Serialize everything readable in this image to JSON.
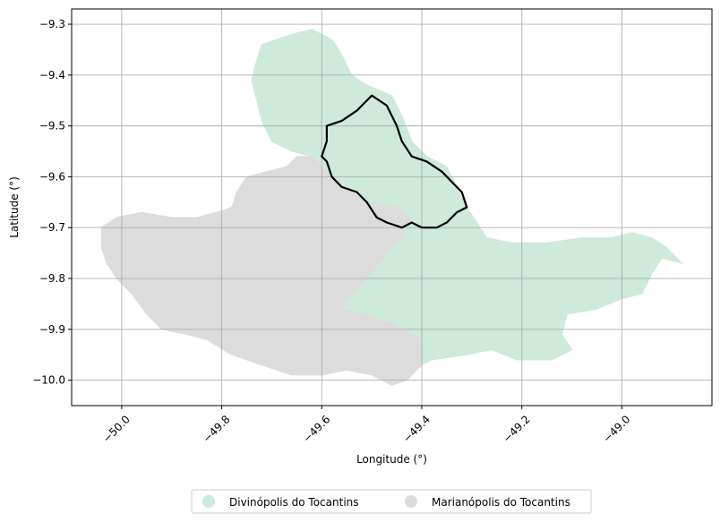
{
  "chart_data": {
    "type": "map",
    "xlabel": "Longitude (°)",
    "ylabel": "Latitude (°)",
    "xlim": [
      -50.1,
      -48.82
    ],
    "ylim": [
      -10.05,
      -9.27
    ],
    "x_ticks": [
      -50.0,
      -49.8,
      -49.6,
      -49.4,
      -49.2,
      -49.0
    ],
    "x_tick_labels": [
      "−50.0",
      "−49.8",
      "−49.6",
      "−49.4",
      "−49.2",
      "−49.0"
    ],
    "y_ticks": [
      -9.3,
      -9.4,
      -9.5,
      -9.6,
      -9.7,
      -9.8,
      -9.9,
      -10.0
    ],
    "y_tick_labels": [
      "−9.3",
      "−9.4",
      "−9.5",
      "−9.6",
      "−9.7",
      "−9.8",
      "−9.9",
      "−10.0"
    ],
    "grid": true,
    "legend_position": "bottom-center",
    "regions": [
      {
        "name": "Divinópolis do Tocantins",
        "color": "#cdeadb",
        "outline": [
          [
            -49.74,
            -9.41
          ],
          [
            -49.73,
            -9.37
          ],
          [
            -49.72,
            -9.34
          ],
          [
            -49.69,
            -9.33
          ],
          [
            -49.66,
            -9.32
          ],
          [
            -49.62,
            -9.31
          ],
          [
            -49.58,
            -9.33
          ],
          [
            -49.56,
            -9.36
          ],
          [
            -49.54,
            -9.4
          ],
          [
            -49.51,
            -9.42
          ],
          [
            -49.46,
            -9.44
          ],
          [
            -49.44,
            -9.48
          ],
          [
            -49.42,
            -9.53
          ],
          [
            -49.39,
            -9.56
          ],
          [
            -49.35,
            -9.58
          ],
          [
            -49.33,
            -9.62
          ],
          [
            -49.31,
            -9.66
          ],
          [
            -49.29,
            -9.69
          ],
          [
            -49.27,
            -9.72
          ],
          [
            -49.22,
            -9.73
          ],
          [
            -49.15,
            -9.73
          ],
          [
            -49.08,
            -9.72
          ],
          [
            -49.02,
            -9.72
          ],
          [
            -48.98,
            -9.71
          ],
          [
            -48.94,
            -9.72
          ],
          [
            -48.91,
            -9.74
          ],
          [
            -48.88,
            -9.77
          ],
          [
            -48.92,
            -9.76
          ],
          [
            -48.94,
            -9.79
          ],
          [
            -48.96,
            -9.83
          ],
          [
            -49.0,
            -9.84
          ],
          [
            -49.05,
            -9.86
          ],
          [
            -49.11,
            -9.87
          ],
          [
            -49.12,
            -9.91
          ],
          [
            -49.1,
            -9.94
          ],
          [
            -49.14,
            -9.96
          ],
          [
            -49.21,
            -9.96
          ],
          [
            -49.26,
            -9.94
          ],
          [
            -49.31,
            -9.95
          ],
          [
            -49.38,
            -9.96
          ],
          [
            -49.4,
            -9.97
          ],
          [
            -49.4,
            -9.92
          ],
          [
            -49.46,
            -9.89
          ],
          [
            -49.52,
            -9.87
          ],
          [
            -49.56,
            -9.86
          ],
          [
            -49.54,
            -9.83
          ],
          [
            -49.51,
            -9.8
          ],
          [
            -49.47,
            -9.75
          ],
          [
            -49.44,
            -9.72
          ],
          [
            -49.42,
            -9.68
          ],
          [
            -49.45,
            -9.66
          ],
          [
            -49.51,
            -9.65
          ],
          [
            -49.56,
            -9.62
          ],
          [
            -49.59,
            -9.59
          ],
          [
            -49.62,
            -9.56
          ],
          [
            -49.66,
            -9.55
          ],
          [
            -49.7,
            -9.53
          ],
          [
            -49.72,
            -9.49
          ],
          [
            -49.73,
            -9.45
          ]
        ]
      },
      {
        "name": "Marianópolis do Tocantins",
        "color": "#dcdcdc",
        "outline": [
          [
            -50.04,
            -9.7
          ],
          [
            -50.01,
            -9.68
          ],
          [
            -49.96,
            -9.67
          ],
          [
            -49.9,
            -9.68
          ],
          [
            -49.85,
            -9.68
          ],
          [
            -49.81,
            -9.67
          ],
          [
            -49.78,
            -9.66
          ],
          [
            -49.77,
            -9.63
          ],
          [
            -49.75,
            -9.6
          ],
          [
            -49.71,
            -9.59
          ],
          [
            -49.67,
            -9.58
          ],
          [
            -49.65,
            -9.56
          ],
          [
            -49.62,
            -9.56
          ],
          [
            -49.59,
            -9.59
          ],
          [
            -49.56,
            -9.62
          ],
          [
            -49.51,
            -9.65
          ],
          [
            -49.45,
            -9.66
          ],
          [
            -49.42,
            -9.68
          ],
          [
            -49.44,
            -9.72
          ],
          [
            -49.47,
            -9.75
          ],
          [
            -49.51,
            -9.8
          ],
          [
            -49.54,
            -9.83
          ],
          [
            -49.56,
            -9.86
          ],
          [
            -49.52,
            -9.87
          ],
          [
            -49.46,
            -9.89
          ],
          [
            -49.4,
            -9.92
          ],
          [
            -49.4,
            -9.97
          ],
          [
            -49.43,
            -10.0
          ],
          [
            -49.46,
            -10.01
          ],
          [
            -49.5,
            -9.99
          ],
          [
            -49.55,
            -9.98
          ],
          [
            -49.6,
            -9.99
          ],
          [
            -49.66,
            -9.99
          ],
          [
            -49.72,
            -9.97
          ],
          [
            -49.78,
            -9.95
          ],
          [
            -49.83,
            -9.92
          ],
          [
            -49.87,
            -9.91
          ],
          [
            -49.92,
            -9.9
          ],
          [
            -49.95,
            -9.87
          ],
          [
            -49.98,
            -9.83
          ],
          [
            -50.01,
            -9.8
          ],
          [
            -50.03,
            -9.77
          ],
          [
            -50.04,
            -9.74
          ]
        ]
      }
    ],
    "highlight_boundary": [
      [
        -49.59,
        -9.5
      ],
      [
        -49.56,
        -9.49
      ],
      [
        -49.53,
        -9.47
      ],
      [
        -49.5,
        -9.44
      ],
      [
        -49.47,
        -9.46
      ],
      [
        -49.45,
        -9.5
      ],
      [
        -49.44,
        -9.53
      ],
      [
        -49.42,
        -9.56
      ],
      [
        -49.39,
        -9.57
      ],
      [
        -49.36,
        -9.59
      ],
      [
        -49.34,
        -9.61
      ],
      [
        -49.32,
        -9.63
      ],
      [
        -49.31,
        -9.66
      ],
      [
        -49.33,
        -9.67
      ],
      [
        -49.35,
        -9.69
      ],
      [
        -49.37,
        -9.7
      ],
      [
        -49.4,
        -9.7
      ],
      [
        -49.42,
        -9.69
      ],
      [
        -49.44,
        -9.7
      ],
      [
        -49.47,
        -9.69
      ],
      [
        -49.49,
        -9.68
      ],
      [
        -49.51,
        -9.65
      ],
      [
        -49.53,
        -9.63
      ],
      [
        -49.56,
        -9.62
      ],
      [
        -49.58,
        -9.6
      ],
      [
        -49.59,
        -9.57
      ],
      [
        -49.6,
        -9.56
      ],
      [
        -49.59,
        -9.53
      ]
    ],
    "legend": [
      {
        "label": "Divinópolis do Tocantins",
        "color": "#cdeadb"
      },
      {
        "label": "Marianópolis do Tocantins",
        "color": "#dcdcdc"
      }
    ]
  }
}
